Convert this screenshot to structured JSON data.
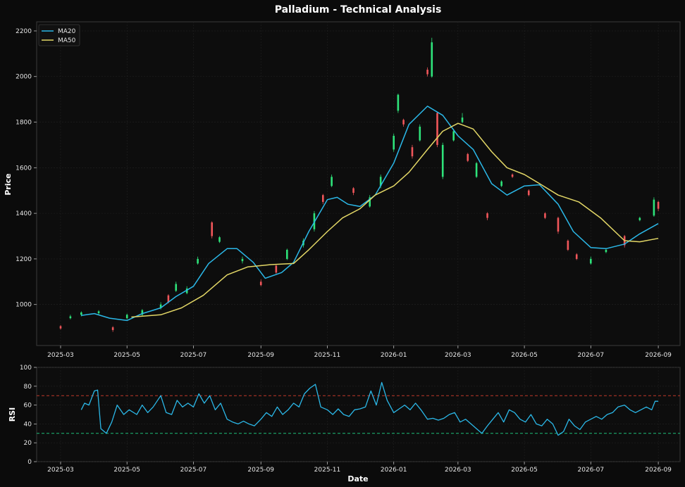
{
  "chart_data": {
    "type": "line",
    "title": "Palladium - Technical Analysis",
    "colors": {
      "background": "#0b0b0b",
      "panel": "#0d0d0d",
      "grid": "#222222",
      "spine": "#3a3a3a",
      "ma20": "#2bb8e8",
      "ma50": "#e3d766",
      "rsi": "#2bb8e8",
      "up": "#2ee37a",
      "down": "#f0565a",
      "overbought": "#c0392b",
      "oversold": "#1fbf7a"
    },
    "x_ticks": [
      "2025-03",
      "2025-05",
      "2025-07",
      "2025-09",
      "2025-11",
      "2026-01",
      "2026-03",
      "2026-05",
      "2026-07",
      "2026-09"
    ],
    "xlabel": "Date",
    "price_panel": {
      "ylabel": "Price",
      "ylim": [
        820,
        2240
      ],
      "yticks": [
        1000,
        1200,
        1400,
        1600,
        1800,
        2000,
        2200
      ],
      "legend": {
        "placement": "top-left",
        "entries": [
          "MA20",
          "MA50"
        ]
      },
      "series": [
        {
          "name": "MA20",
          "points": [
            [
              "2025-03-20",
              952
            ],
            [
              "2025-04-01",
              960
            ],
            [
              "2025-04-15",
              940
            ],
            [
              "2025-05-01",
              930
            ],
            [
              "2025-05-15",
              960
            ],
            [
              "2025-06-01",
              985
            ],
            [
              "2025-06-15",
              1035
            ],
            [
              "2025-07-01",
              1080
            ],
            [
              "2025-07-15",
              1180
            ],
            [
              "2025-08-01",
              1245
            ],
            [
              "2025-08-10",
              1245
            ],
            [
              "2025-08-25",
              1185
            ],
            [
              "2025-09-05",
              1115
            ],
            [
              "2025-09-20",
              1140
            ],
            [
              "2025-10-01",
              1185
            ],
            [
              "2025-10-15",
              1320
            ],
            [
              "2025-11-01",
              1460
            ],
            [
              "2025-11-10",
              1470
            ],
            [
              "2025-11-20",
              1440
            ],
            [
              "2025-12-01",
              1430
            ],
            [
              "2025-12-15",
              1480
            ],
            [
              "2026-01-01",
              1620
            ],
            [
              "2026-01-15",
              1790
            ],
            [
              "2026-02-01",
              1870
            ],
            [
              "2026-02-15",
              1830
            ],
            [
              "2026-03-01",
              1740
            ],
            [
              "2026-03-15",
              1680
            ],
            [
              "2026-04-01",
              1530
            ],
            [
              "2026-04-15",
              1480
            ],
            [
              "2026-05-01",
              1520
            ],
            [
              "2026-05-15",
              1525
            ],
            [
              "2026-06-01",
              1440
            ],
            [
              "2026-06-15",
              1320
            ],
            [
              "2026-07-01",
              1250
            ],
            [
              "2026-07-15",
              1245
            ],
            [
              "2026-08-01",
              1265
            ],
            [
              "2026-08-15",
              1310
            ],
            [
              "2026-09-01",
              1355
            ]
          ]
        },
        {
          "name": "MA50",
          "points": [
            [
              "2025-05-05",
              945
            ],
            [
              "2025-06-01",
              955
            ],
            [
              "2025-06-20",
              985
            ],
            [
              "2025-07-10",
              1040
            ],
            [
              "2025-08-01",
              1130
            ],
            [
              "2025-08-20",
              1165
            ],
            [
              "2025-09-10",
              1175
            ],
            [
              "2025-10-01",
              1180
            ],
            [
              "2025-10-15",
              1240
            ],
            [
              "2025-11-01",
              1320
            ],
            [
              "2025-11-15",
              1380
            ],
            [
              "2025-12-01",
              1420
            ],
            [
              "2025-12-15",
              1480
            ],
            [
              "2026-01-01",
              1520
            ],
            [
              "2026-01-15",
              1580
            ],
            [
              "2026-02-01",
              1680
            ],
            [
              "2026-02-15",
              1760
            ],
            [
              "2026-03-01",
              1795
            ],
            [
              "2026-03-15",
              1770
            ],
            [
              "2026-04-01",
              1670
            ],
            [
              "2026-04-15",
              1600
            ],
            [
              "2026-05-01",
              1570
            ],
            [
              "2026-05-15",
              1530
            ],
            [
              "2026-06-01",
              1480
            ],
            [
              "2026-06-20",
              1450
            ],
            [
              "2026-07-10",
              1380
            ],
            [
              "2026-08-01",
              1280
            ],
            [
              "2026-08-15",
              1275
            ],
            [
              "2026-09-01",
              1290
            ]
          ]
        }
      ],
      "candles": [
        [
          "2025-03-01",
          905,
          895,
          910,
          890
        ],
        [
          "2025-03-10",
          940,
          948,
          955,
          935
        ],
        [
          "2025-03-20",
          955,
          965,
          970,
          948
        ],
        [
          "2025-04-05",
          962,
          970,
          975,
          955
        ],
        [
          "2025-04-18",
          900,
          888,
          905,
          880
        ],
        [
          "2025-05-01",
          940,
          955,
          960,
          935
        ],
        [
          "2025-05-15",
          955,
          975,
          980,
          950
        ],
        [
          "2025-06-01",
          985,
          1000,
          1010,
          978
        ],
        [
          "2025-06-08",
          1040,
          1010,
          1045,
          1005
        ],
        [
          "2025-06-15",
          1060,
          1090,
          1100,
          1055
        ],
        [
          "2025-06-25",
          1050,
          1070,
          1080,
          1045
        ],
        [
          "2025-07-05",
          1180,
          1200,
          1210,
          1175
        ],
        [
          "2025-07-18",
          1360,
          1300,
          1365,
          1290
        ],
        [
          "2025-07-25",
          1275,
          1295,
          1300,
          1270
        ],
        [
          "2025-08-15",
          1190,
          1200,
          1210,
          1180
        ],
        [
          "2025-09-01",
          1100,
          1085,
          1110,
          1080
        ],
        [
          "2025-09-15",
          1170,
          1140,
          1175,
          1135
        ],
        [
          "2025-09-25",
          1200,
          1240,
          1245,
          1195
        ],
        [
          "2025-10-10",
          1260,
          1280,
          1290,
          1250
        ],
        [
          "2025-10-20",
          1330,
          1400,
          1410,
          1320
        ],
        [
          "2025-10-28",
          1480,
          1450,
          1485,
          1440
        ],
        [
          "2025-11-05",
          1520,
          1560,
          1570,
          1515
        ],
        [
          "2025-11-25",
          1510,
          1490,
          1515,
          1480
        ],
        [
          "2025-12-10",
          1430,
          1470,
          1480,
          1425
        ],
        [
          "2025-12-20",
          1520,
          1560,
          1570,
          1510
        ],
        [
          "2026-01-01",
          1680,
          1740,
          1750,
          1670
        ],
        [
          "2026-01-05",
          1850,
          1920,
          1925,
          1840
        ],
        [
          "2026-01-10",
          1810,
          1790,
          1815,
          1780
        ],
        [
          "2026-01-18",
          1690,
          1650,
          1700,
          1640
        ],
        [
          "2026-01-25",
          1720,
          1780,
          1790,
          1715
        ],
        [
          "2026-02-01",
          2030,
          2010,
          2040,
          2000
        ],
        [
          "2026-02-05",
          2000,
          2150,
          2170,
          1995
        ],
        [
          "2026-02-10",
          1840,
          1700,
          1845,
          1690
        ],
        [
          "2026-02-15",
          1560,
          1700,
          1710,
          1550
        ],
        [
          "2026-02-25",
          1720,
          1760,
          1770,
          1715
        ],
        [
          "2026-03-05",
          1800,
          1820,
          1840,
          1795
        ],
        [
          "2026-03-10",
          1660,
          1630,
          1665,
          1625
        ],
        [
          "2026-03-18",
          1560,
          1620,
          1625,
          1555
        ],
        [
          "2026-03-28",
          1400,
          1380,
          1405,
          1370
        ],
        [
          "2026-04-10",
          1520,
          1540,
          1545,
          1515
        ],
        [
          "2026-04-20",
          1570,
          1560,
          1575,
          1555
        ],
        [
          "2026-05-05",
          1500,
          1480,
          1505,
          1475
        ],
        [
          "2026-05-20",
          1400,
          1380,
          1405,
          1375
        ],
        [
          "2026-06-01",
          1380,
          1320,
          1385,
          1310
        ],
        [
          "2026-06-10",
          1280,
          1240,
          1285,
          1235
        ],
        [
          "2026-06-18",
          1220,
          1200,
          1225,
          1195
        ],
        [
          "2026-07-01",
          1180,
          1200,
          1210,
          1175
        ],
        [
          "2026-07-15",
          1230,
          1240,
          1245,
          1225
        ],
        [
          "2026-08-01",
          1300,
          1260,
          1305,
          1250
        ],
        [
          "2026-08-15",
          1370,
          1380,
          1385,
          1365
        ],
        [
          "2026-08-28",
          1390,
          1460,
          1470,
          1385
        ],
        [
          "2026-09-01",
          1450,
          1420,
          1455,
          1410
        ]
      ]
    },
    "rsi_panel": {
      "ylabel": "RSI",
      "ylim": [
        0,
        100
      ],
      "yticks": [
        0,
        20,
        40,
        60,
        80,
        100
      ],
      "levels": [
        70,
        30
      ],
      "points": [
        [
          "2025-03-20",
          55
        ],
        [
          "2025-03-23",
          62
        ],
        [
          "2025-03-27",
          60
        ],
        [
          "2025-04-01",
          75
        ],
        [
          "2025-04-04",
          76
        ],
        [
          "2025-04-07",
          35
        ],
        [
          "2025-04-12",
          30
        ],
        [
          "2025-04-17",
          42
        ],
        [
          "2025-04-22",
          60
        ],
        [
          "2025-04-28",
          50
        ],
        [
          "2025-05-03",
          55
        ],
        [
          "2025-05-10",
          50
        ],
        [
          "2025-05-15",
          60
        ],
        [
          "2025-05-20",
          52
        ],
        [
          "2025-05-25",
          58
        ],
        [
          "2025-06-01",
          70
        ],
        [
          "2025-06-06",
          52
        ],
        [
          "2025-06-11",
          50
        ],
        [
          "2025-06-16",
          65
        ],
        [
          "2025-06-21",
          58
        ],
        [
          "2025-06-26",
          62
        ],
        [
          "2025-07-01",
          58
        ],
        [
          "2025-07-06",
          72
        ],
        [
          "2025-07-11",
          62
        ],
        [
          "2025-07-16",
          70
        ],
        [
          "2025-07-21",
          55
        ],
        [
          "2025-07-26",
          62
        ],
        [
          "2025-08-01",
          45
        ],
        [
          "2025-08-06",
          42
        ],
        [
          "2025-08-11",
          40
        ],
        [
          "2025-08-16",
          43
        ],
        [
          "2025-08-21",
          40
        ],
        [
          "2025-08-26",
          38
        ],
        [
          "2025-09-01",
          45
        ],
        [
          "2025-09-06",
          52
        ],
        [
          "2025-09-11",
          48
        ],
        [
          "2025-09-16",
          58
        ],
        [
          "2025-09-21",
          50
        ],
        [
          "2025-09-26",
          55
        ],
        [
          "2025-10-01",
          62
        ],
        [
          "2025-10-06",
          58
        ],
        [
          "2025-10-11",
          72
        ],
        [
          "2025-10-16",
          78
        ],
        [
          "2025-10-21",
          82
        ],
        [
          "2025-10-26",
          58
        ],
        [
          "2025-11-01",
          55
        ],
        [
          "2025-11-06",
          50
        ],
        [
          "2025-11-11",
          56
        ],
        [
          "2025-11-16",
          50
        ],
        [
          "2025-11-21",
          48
        ],
        [
          "2025-11-26",
          55
        ],
        [
          "2025-12-01",
          56
        ],
        [
          "2025-12-06",
          58
        ],
        [
          "2025-12-11",
          75
        ],
        [
          "2025-12-16",
          60
        ],
        [
          "2025-12-21",
          84
        ],
        [
          "2025-12-26",
          65
        ],
        [
          "2026-01-01",
          52
        ],
        [
          "2026-01-06",
          56
        ],
        [
          "2026-01-11",
          60
        ],
        [
          "2026-01-16",
          55
        ],
        [
          "2026-01-21",
          62
        ],
        [
          "2026-01-26",
          55
        ],
        [
          "2026-02-01",
          45
        ],
        [
          "2026-02-06",
          46
        ],
        [
          "2026-02-11",
          44
        ],
        [
          "2026-02-16",
          46
        ],
        [
          "2026-02-21",
          50
        ],
        [
          "2026-02-26",
          52
        ],
        [
          "2026-03-03",
          42
        ],
        [
          "2026-03-08",
          45
        ],
        [
          "2026-03-13",
          40
        ],
        [
          "2026-03-18",
          35
        ],
        [
          "2026-03-23",
          30
        ],
        [
          "2026-03-28",
          38
        ],
        [
          "2026-04-02",
          45
        ],
        [
          "2026-04-07",
          52
        ],
        [
          "2026-04-12",
          42
        ],
        [
          "2026-04-17",
          55
        ],
        [
          "2026-04-22",
          52
        ],
        [
          "2026-04-27",
          45
        ],
        [
          "2026-05-02",
          42
        ],
        [
          "2026-05-07",
          50
        ],
        [
          "2026-05-12",
          40
        ],
        [
          "2026-05-17",
          38
        ],
        [
          "2026-05-22",
          45
        ],
        [
          "2026-05-27",
          40
        ],
        [
          "2026-06-01",
          28
        ],
        [
          "2026-06-06",
          32
        ],
        [
          "2026-06-11",
          45
        ],
        [
          "2026-06-16",
          38
        ],
        [
          "2026-06-21",
          34
        ],
        [
          "2026-06-26",
          42
        ],
        [
          "2026-07-01",
          45
        ],
        [
          "2026-07-06",
          48
        ],
        [
          "2026-07-11",
          45
        ],
        [
          "2026-07-16",
          50
        ],
        [
          "2026-07-21",
          52
        ],
        [
          "2026-07-26",
          58
        ],
        [
          "2026-08-01",
          60
        ],
        [
          "2026-08-06",
          55
        ],
        [
          "2026-08-11",
          52
        ],
        [
          "2026-08-16",
          55
        ],
        [
          "2026-08-21",
          58
        ],
        [
          "2026-08-26",
          55
        ],
        [
          "2026-08-29",
          64
        ],
        [
          "2026-09-01",
          64
        ]
      ]
    }
  }
}
